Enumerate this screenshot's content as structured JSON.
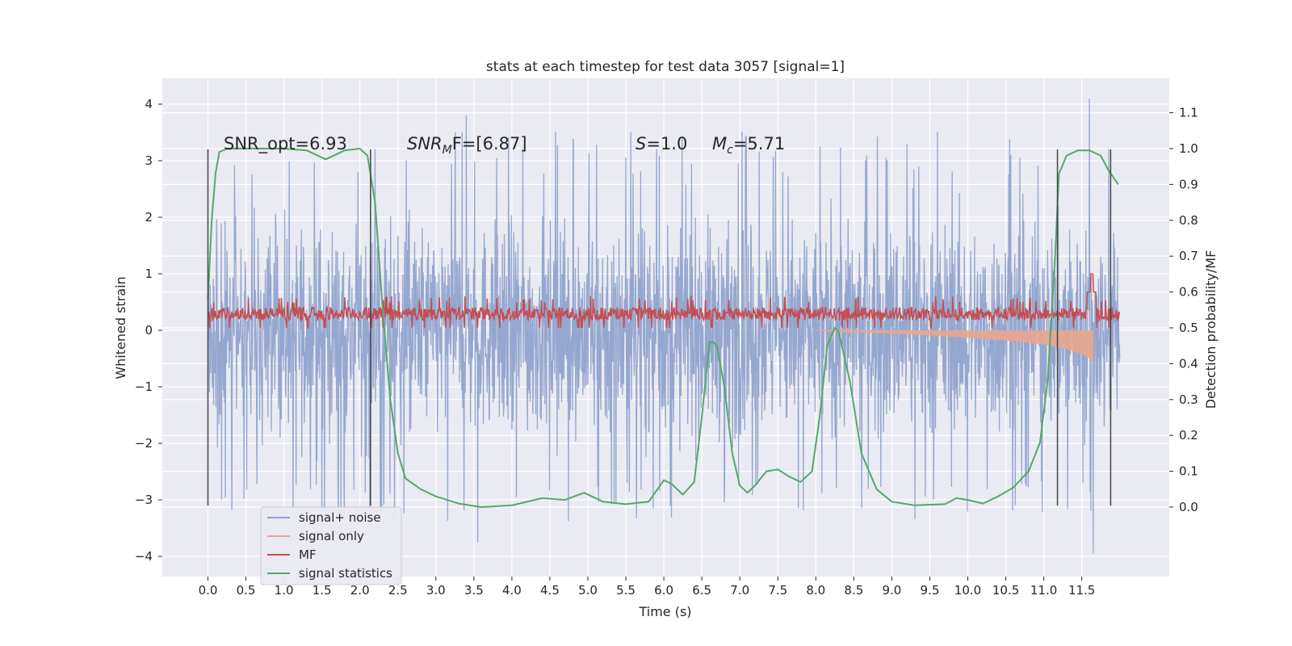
{
  "chart_data": {
    "type": "line",
    "title": "stats at each timestep for test data 3057 [signal=1]",
    "xlabel": "Time (s)",
    "ylabel_left": "Whitened strain",
    "ylabel_right": "Detection probability/MF",
    "xlim": [
      -0.6,
      12.6
    ],
    "ylim_left": [
      -4.3,
      4.5
    ],
    "ylim_right": [
      -0.2,
      1.2
    ],
    "x_ticks": [
      "0.0",
      "0.5",
      "1.0",
      "1.5",
      "2.0",
      "2.5",
      "3.0",
      "3.5",
      "4.0",
      "4.5",
      "5.0",
      "5.5",
      "6.0",
      "6.5",
      "7.0",
      "7.5",
      "8.0",
      "8.5",
      "9.0",
      "9.5",
      "10.0",
      "10.5",
      "11.0",
      "11.5"
    ],
    "y_ticks_left": [
      "4",
      "3",
      "2",
      "1",
      "0",
      "−1",
      "−2",
      "−3",
      "−4"
    ],
    "y_ticks_right": [
      "1.1",
      "1.0",
      "0.9",
      "0.8",
      "0.7",
      "0.6",
      "0.5",
      "0.4",
      "0.3",
      "0.2",
      "0.1",
      "0.0"
    ],
    "grid": true,
    "legend_position": "lower-left",
    "annotations": {
      "snr_opt": "SNR_opt=6.93",
      "snr_mf_main": "SNR",
      "snr_mf_sub": "M",
      "snr_mf_tail": "F=[6.87]",
      "s_main": "S",
      "s_tail": "=1.0",
      "mc_main": "M",
      "mc_sub": "c",
      "mc_tail": "=5.71"
    },
    "vertical_markers": {
      "x": [
        0.0,
        2.14,
        11.18,
        11.88
      ],
      "y_range": [
        -3.1,
        3.2
      ]
    },
    "series": [
      {
        "name": "signal+ noise",
        "color": "#8fa3cc",
        "axis": "left",
        "x_range": [
          0.0,
          12.0
        ],
        "envelope_positive": 3.2,
        "envelope_negative": -3.1,
        "extremes": [
          [
            3.4,
            3.8
          ],
          [
            11.6,
            4.1
          ],
          [
            11.65,
            -3.95
          ],
          [
            1.5,
            -3.6
          ],
          [
            3.55,
            -3.75
          ]
        ]
      },
      {
        "name": "signal only",
        "color": "#e8a68f",
        "axis": "left",
        "x": [
          8.0,
          8.5,
          9.0,
          9.5,
          10.0,
          10.5,
          11.0,
          11.3,
          11.5,
          11.6,
          11.65
        ],
        "y": [
          0.0,
          -0.03,
          -0.06,
          -0.09,
          -0.13,
          -0.18,
          -0.25,
          -0.33,
          -0.42,
          -0.5,
          -0.58
        ]
      },
      {
        "name": "MF",
        "color": "#c44e52",
        "axis": "right",
        "x_range": [
          0.0,
          12.0
        ],
        "band": [
          0.505,
          0.57
        ],
        "peak": [
          11.63,
          0.65
        ]
      },
      {
        "name": "signal statistics",
        "color": "#55a868",
        "axis": "right",
        "x": [
          0.0,
          0.05,
          0.1,
          0.15,
          0.25,
          0.5,
          1.0,
          1.3,
          1.55,
          1.8,
          2.0,
          2.1,
          2.2,
          2.3,
          2.4,
          2.5,
          2.6,
          2.8,
          3.0,
          3.3,
          3.6,
          4.0,
          4.4,
          4.7,
          4.95,
          5.2,
          5.5,
          5.8,
          6.0,
          6.1,
          6.25,
          6.4,
          6.5,
          6.6,
          6.65,
          6.7,
          6.8,
          6.9,
          7.0,
          7.1,
          7.2,
          7.35,
          7.5,
          7.65,
          7.8,
          7.95,
          8.05,
          8.15,
          8.25,
          8.3,
          8.45,
          8.6,
          8.8,
          9.0,
          9.3,
          9.7,
          9.85,
          10.0,
          10.2,
          10.4,
          10.6,
          10.8,
          10.95,
          11.05,
          11.15,
          11.2,
          11.3,
          11.45,
          11.6,
          11.75,
          11.85,
          11.98
        ],
        "y": [
          0.58,
          0.8,
          0.93,
          0.99,
          1.0,
          1.0,
          1.0,
          0.995,
          0.97,
          0.995,
          1.0,
          0.98,
          0.85,
          0.55,
          0.3,
          0.15,
          0.08,
          0.05,
          0.03,
          0.01,
          0.0,
          0.005,
          0.025,
          0.02,
          0.04,
          0.015,
          0.008,
          0.015,
          0.075,
          0.065,
          0.035,
          0.07,
          0.25,
          0.46,
          0.46,
          0.45,
          0.33,
          0.15,
          0.06,
          0.04,
          0.06,
          0.1,
          0.105,
          0.085,
          0.07,
          0.1,
          0.25,
          0.45,
          0.5,
          0.49,
          0.35,
          0.15,
          0.05,
          0.015,
          0.005,
          0.008,
          0.025,
          0.02,
          0.01,
          0.03,
          0.055,
          0.1,
          0.18,
          0.35,
          0.7,
          0.93,
          0.98,
          0.995,
          0.995,
          0.98,
          0.94,
          0.9
        ]
      }
    ]
  }
}
